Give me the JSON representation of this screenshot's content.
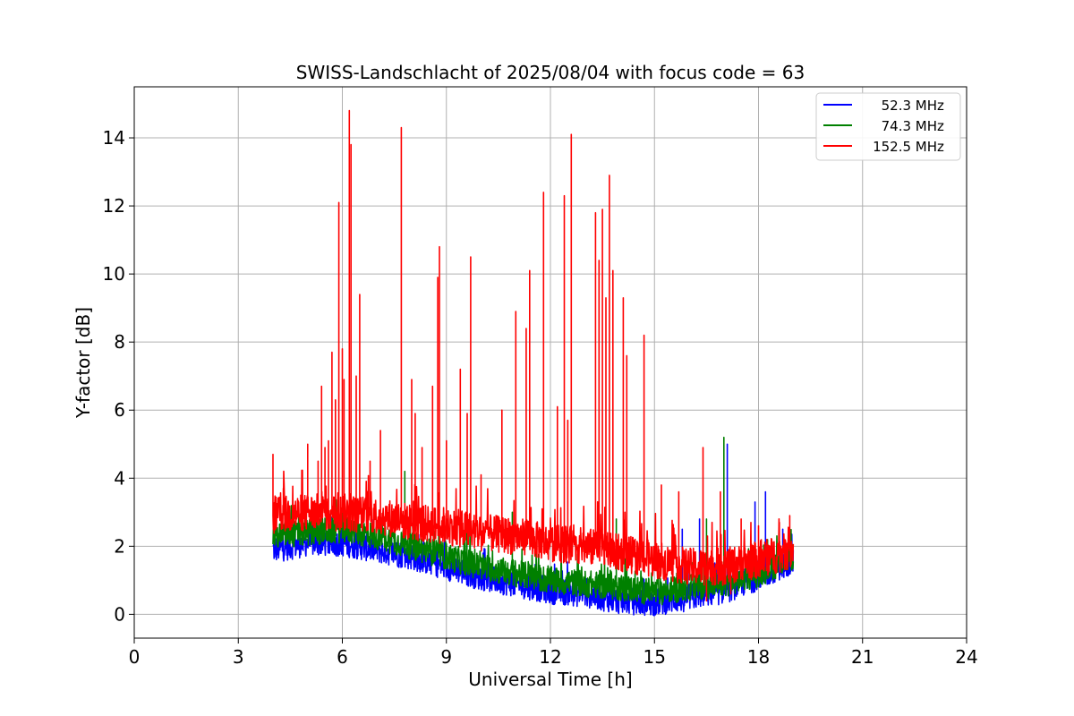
{
  "chart_data": {
    "type": "line",
    "title": "SWISS-Landschlacht of 2025/08/04 with focus code = 63",
    "xlabel": "Universal Time [h]",
    "ylabel": "Y-factor [dB]",
    "xlim": [
      0,
      24
    ],
    "ylim": [
      -0.7,
      15.5
    ],
    "xticks": [
      "0",
      "3",
      "6",
      "9",
      "12",
      "15",
      "18",
      "21",
      "24"
    ],
    "yticks": [
      "0",
      "2",
      "4",
      "6",
      "8",
      "10",
      "12",
      "14"
    ],
    "grid": true,
    "legend_position": "top-right",
    "series": [
      {
        "name": "  52.3 MHz",
        "color": "#0000ff",
        "baseline": [
          [
            4.0,
            1.9
          ],
          [
            5.0,
            2.1
          ],
          [
            6.0,
            2.1
          ],
          [
            7.0,
            1.9
          ],
          [
            8.0,
            1.7
          ],
          [
            9.0,
            1.4
          ],
          [
            10.0,
            1.1
          ],
          [
            11.0,
            0.9
          ],
          [
            12.0,
            0.7
          ],
          [
            13.0,
            0.6
          ],
          [
            14.0,
            0.4
          ],
          [
            15.0,
            0.35
          ],
          [
            16.0,
            0.5
          ],
          [
            17.0,
            0.7
          ],
          [
            18.0,
            1.1
          ],
          [
            19.0,
            1.6
          ]
        ],
        "spikes": [
          [
            17.1,
            5.0
          ],
          [
            18.2,
            3.6
          ],
          [
            17.9,
            3.3
          ],
          [
            16.3,
            2.8
          ],
          [
            15.8,
            2.5
          ],
          [
            18.7,
            2.5
          ]
        ]
      },
      {
        "name": "  74.3 MHz",
        "color": "#008000",
        "baseline": [
          [
            4.0,
            2.3
          ],
          [
            5.0,
            2.4
          ],
          [
            6.0,
            2.5
          ],
          [
            7.0,
            2.3
          ],
          [
            8.0,
            2.0
          ],
          [
            9.0,
            1.7
          ],
          [
            10.0,
            1.4
          ],
          [
            11.0,
            1.2
          ],
          [
            12.0,
            1.0
          ],
          [
            13.0,
            0.9
          ],
          [
            14.0,
            0.8
          ],
          [
            15.0,
            0.65
          ],
          [
            16.0,
            0.8
          ],
          [
            17.0,
            0.9
          ],
          [
            18.0,
            1.2
          ],
          [
            19.0,
            1.7
          ]
        ],
        "spikes": [
          [
            17.0,
            5.2
          ],
          [
            7.8,
            4.2
          ],
          [
            10.9,
            3.0
          ],
          [
            13.9,
            2.8
          ],
          [
            16.5,
            2.8
          ]
        ]
      },
      {
        "name": "152.5 MHz",
        "color": "#ff0000",
        "baseline": [
          [
            4.0,
            2.9
          ],
          [
            5.0,
            3.0
          ],
          [
            6.0,
            3.0
          ],
          [
            7.0,
            2.9
          ],
          [
            8.0,
            2.7
          ],
          [
            9.0,
            2.6
          ],
          [
            10.0,
            2.4
          ],
          [
            11.0,
            2.3
          ],
          [
            12.0,
            2.1
          ],
          [
            13.0,
            2.0
          ],
          [
            14.0,
            1.8
          ],
          [
            15.0,
            1.6
          ],
          [
            16.0,
            1.4
          ],
          [
            17.0,
            1.4
          ],
          [
            18.0,
            1.6
          ],
          [
            19.0,
            1.9
          ]
        ],
        "spikes": [
          [
            4.0,
            4.7
          ],
          [
            4.3,
            3.7
          ],
          [
            4.8,
            3.5
          ],
          [
            5.0,
            5.0
          ],
          [
            5.3,
            4.5
          ],
          [
            5.4,
            6.7
          ],
          [
            5.5,
            4.9
          ],
          [
            5.6,
            5.1
          ],
          [
            5.7,
            7.7
          ],
          [
            5.8,
            6.3
          ],
          [
            5.9,
            12.1
          ],
          [
            6.0,
            7.8
          ],
          [
            6.05,
            6.9
          ],
          [
            6.2,
            14.8
          ],
          [
            6.25,
            13.8
          ],
          [
            6.4,
            7.0
          ],
          [
            6.5,
            9.4
          ],
          [
            6.8,
            4.5
          ],
          [
            7.1,
            5.4
          ],
          [
            7.7,
            14.3
          ],
          [
            8.0,
            6.9
          ],
          [
            8.1,
            5.9
          ],
          [
            8.3,
            4.9
          ],
          [
            8.6,
            6.7
          ],
          [
            8.75,
            9.9
          ],
          [
            8.8,
            10.8
          ],
          [
            9.0,
            5.1
          ],
          [
            9.4,
            7.2
          ],
          [
            9.6,
            5.9
          ],
          [
            9.7,
            10.5
          ],
          [
            10.0,
            4.1
          ],
          [
            10.6,
            6.0
          ],
          [
            11.0,
            8.9
          ],
          [
            11.3,
            8.4
          ],
          [
            11.4,
            10.1
          ],
          [
            11.8,
            12.4
          ],
          [
            12.2,
            6.1
          ],
          [
            12.4,
            12.3
          ],
          [
            12.5,
            5.7
          ],
          [
            12.6,
            14.1
          ],
          [
            13.3,
            11.8
          ],
          [
            13.4,
            10.4
          ],
          [
            13.5,
            11.9
          ],
          [
            13.6,
            9.3
          ],
          [
            13.7,
            12.9
          ],
          [
            13.8,
            10.1
          ],
          [
            14.1,
            9.3
          ],
          [
            14.2,
            7.6
          ],
          [
            14.7,
            8.2
          ],
          [
            15.2,
            3.8
          ],
          [
            15.7,
            3.6
          ],
          [
            16.4,
            4.9
          ],
          [
            16.9,
            3.6
          ],
          [
            17.5,
            2.8
          ],
          [
            18.0,
            2.6
          ],
          [
            18.6,
            2.7
          ],
          [
            18.9,
            2.9
          ]
        ],
        "dips": [
          [
            16.5,
            0.4
          ],
          [
            17.2,
            0.6
          ]
        ]
      }
    ]
  }
}
